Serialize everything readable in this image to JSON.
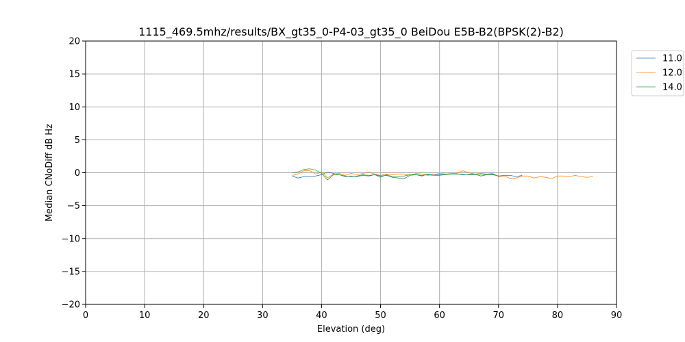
{
  "chart_data": {
    "type": "line",
    "title": "1115_469.5mhz/results/BX_gt35_0-P4-03_gt35_0 BeiDou E5B-B2(BPSK(2)-B2)",
    "xlabel": "Elevation (deg)",
    "ylabel": "Median CNoDiff dB Hz",
    "xlim": [
      0,
      90
    ],
    "ylim": [
      -20,
      20
    ],
    "xticks": [
      0,
      10,
      20,
      30,
      40,
      50,
      60,
      70,
      80,
      90
    ],
    "yticks": [
      -20,
      -15,
      -10,
      -5,
      0,
      5,
      10,
      15,
      20
    ],
    "xtick_labels": [
      "0",
      "10",
      "20",
      "30",
      "40",
      "50",
      "60",
      "70",
      "80",
      "90"
    ],
    "ytick_labels": [
      "−20",
      "−15",
      "−10",
      "−5",
      "0",
      "5",
      "10",
      "15",
      "20"
    ],
    "grid": true,
    "legend_position": "outside top-right",
    "series": [
      {
        "name": "11.0",
        "color": "#1f77b4",
        "x": [
          35,
          36,
          37,
          38,
          39,
          40,
          41,
          42,
          43,
          44,
          45,
          46,
          47,
          48,
          49,
          50,
          51,
          52,
          53,
          54,
          55,
          56,
          57,
          58,
          59,
          60,
          61,
          62,
          63,
          64,
          65,
          66,
          67,
          68,
          69,
          70,
          71,
          72,
          73,
          74
        ],
        "y": [
          -0.5,
          -0.8,
          -0.6,
          -0.6,
          -0.5,
          -0.3,
          0.1,
          -0.1,
          -0.3,
          -0.6,
          -0.5,
          -0.6,
          -0.4,
          -0.5,
          -0.3,
          -0.5,
          -0.4,
          -0.7,
          -0.8,
          -0.9,
          -0.4,
          -0.3,
          -0.5,
          -0.2,
          -0.3,
          -0.3,
          -0.2,
          -0.2,
          -0.2,
          -0.3,
          -0.2,
          -0.2,
          -0.5,
          -0.3,
          -0.3,
          -0.5,
          -0.4,
          -0.4,
          -0.6,
          -0.4
        ]
      },
      {
        "name": "12.0",
        "color": "#ff7f0e",
        "x": [
          35,
          36,
          37,
          38,
          39,
          40,
          41,
          42,
          43,
          44,
          45,
          46,
          47,
          48,
          49,
          50,
          51,
          52,
          53,
          54,
          55,
          56,
          57,
          58,
          59,
          60,
          61,
          62,
          63,
          64,
          65,
          66,
          67,
          68,
          69,
          70,
          71,
          72,
          73,
          74,
          75,
          76,
          77,
          78,
          79,
          80,
          81,
          82,
          83,
          84,
          85,
          86
        ],
        "y": [
          -0.4,
          -0.2,
          0.3,
          0.3,
          -0.2,
          0.1,
          -0.8,
          -0.2,
          -0.1,
          -0.4,
          -0.1,
          -0.3,
          -0.1,
          0.1,
          -0.2,
          -0.4,
          -0.2,
          -0.3,
          -0.2,
          -0.2,
          -0.4,
          -0.1,
          -0.2,
          -0.4,
          -0.3,
          -0.1,
          -0.2,
          -0.1,
          -0.1,
          0.3,
          0.0,
          -0.2,
          -0.1,
          -0.2,
          -0.1,
          -0.6,
          -0.5,
          -0.9,
          -0.8,
          -0.5,
          -0.5,
          -0.8,
          -0.6,
          -0.7,
          -0.9,
          -0.5,
          -0.5,
          -0.6,
          -0.4,
          -0.6,
          -0.7,
          -0.6
        ]
      },
      {
        "name": "14.0",
        "color": "#2ca02c",
        "x": [
          35,
          36,
          37,
          38,
          39,
          40,
          41,
          42,
          43,
          44,
          45,
          46,
          47,
          48,
          49,
          50,
          51,
          52,
          53,
          54,
          55,
          56,
          57,
          58,
          59,
          60,
          61,
          62,
          63,
          64,
          65,
          66,
          67,
          68,
          69,
          70
        ],
        "y": [
          0.0,
          0.1,
          0.5,
          0.6,
          0.4,
          -0.1,
          -1.1,
          -0.3,
          -0.3,
          -0.5,
          -0.6,
          -0.5,
          -0.3,
          -0.4,
          -0.3,
          -0.7,
          -0.3,
          -0.6,
          -0.6,
          -0.5,
          -0.3,
          -0.3,
          -0.4,
          -0.3,
          -0.4,
          -0.4,
          -0.3,
          -0.2,
          -0.2,
          -0.2,
          -0.3,
          -0.3,
          -0.2,
          -0.3,
          -0.2,
          -0.5
        ]
      }
    ]
  }
}
